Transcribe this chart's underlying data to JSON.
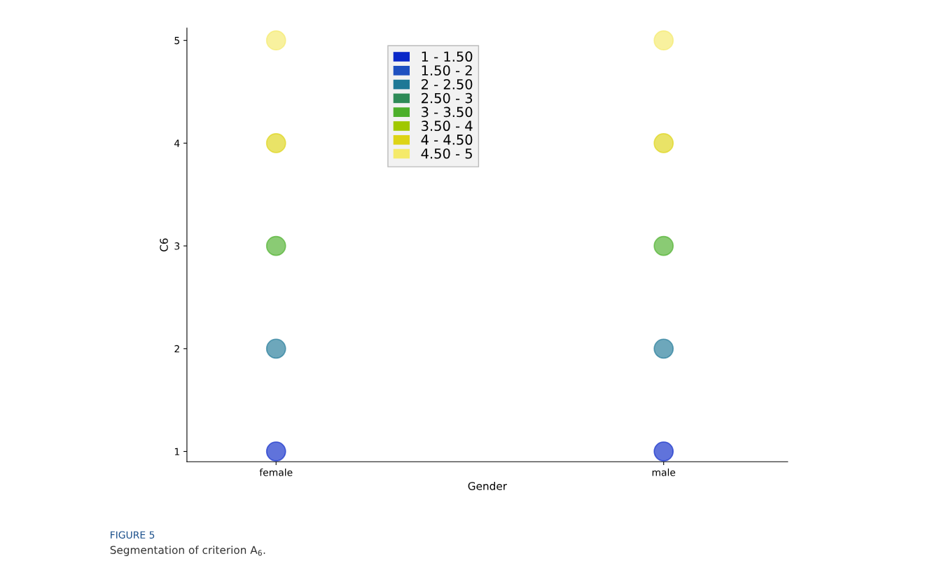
{
  "chart_data": {
    "type": "scatter",
    "xlabel": "Gender",
    "ylabel": "C6",
    "categories": [
      "female",
      "male"
    ],
    "ylim": [
      0.9,
      5.12
    ],
    "yticks": [
      1,
      2,
      3,
      4,
      5
    ],
    "grid": false,
    "legend": "top",
    "marker": "circle",
    "annotations": [
      "FIGURE 5",
      "Segmentation of criterion A$_{6}$."
    ],
    "series": [
      {
        "name": "1 - 1.50",
        "color": "#0a28c8",
        "values": [
          1,
          1
        ]
      },
      {
        "name": "1.50 - 2",
        "color": "#1e50c0",
        "values": [
          null,
          null
        ]
      },
      {
        "name": "2 - 2.50",
        "color": "#1e7896",
        "values": [
          2,
          2
        ]
      },
      {
        "name": "2.50 - 3",
        "color": "#2e8b57",
        "values": [
          null,
          null
        ]
      },
      {
        "name": "3 - 3.50",
        "color": "#4caf2a",
        "values": [
          3,
          3
        ]
      },
      {
        "name": "3.50 - 4",
        "color": "#a0c800",
        "values": [
          null,
          null
        ]
      },
      {
        "name": "4 - 4.50",
        "color": "#ddd415",
        "values": [
          4,
          4
        ]
      },
      {
        "name": "4.50 - 5",
        "color": "#f5ea6a",
        "values": [
          5,
          5
        ]
      }
    ]
  }
}
